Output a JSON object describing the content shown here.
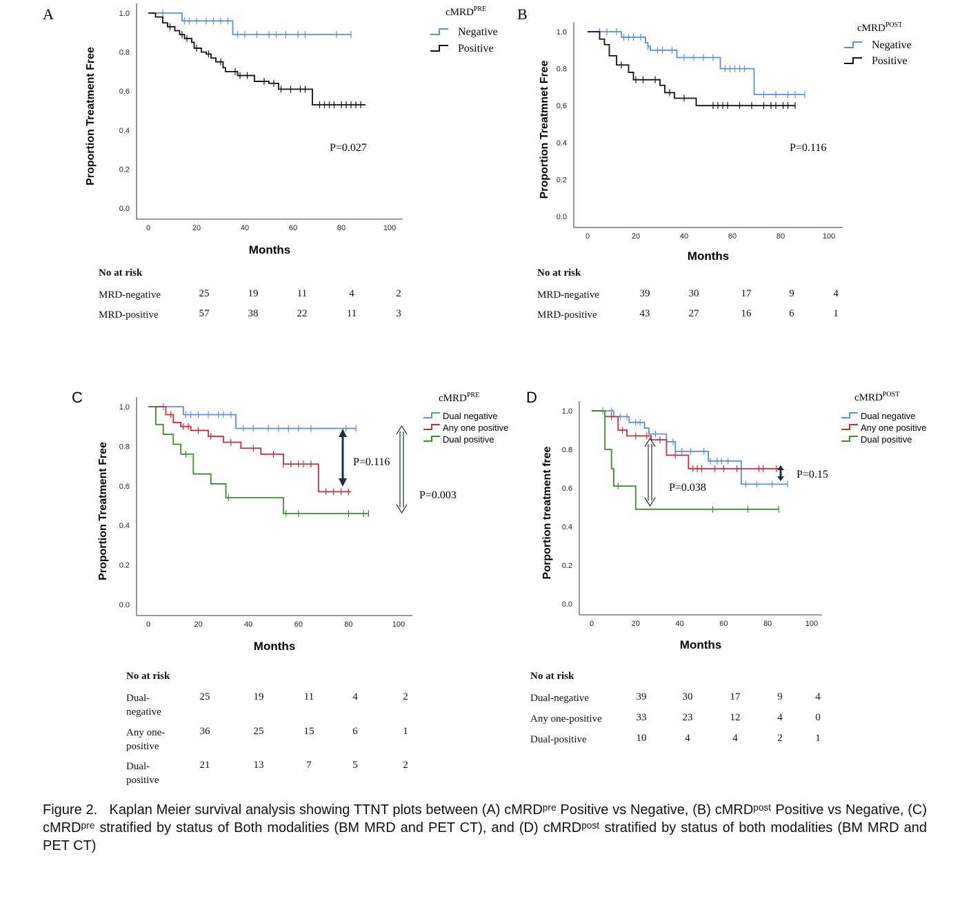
{
  "figure": {
    "caption_prefix": "Figure 2.",
    "caption_text": "Kaplan Meier survival analysis showing TTNT plots between (A) cMRDᵖʳᵉ Positive vs Negative, (B) cMRDᵖᵒˢᵗ Positive vs Negative, (C) cMRDᵖʳᵉ stratified by status of Both modalities (BM MRD and PET CT), and (D) cMRDᵖᵒˢᵗ stratified by status of both modalities (BM MRD and PET CT)"
  },
  "chart_data": [
    {
      "panel": "A",
      "type": "line",
      "step": true,
      "xlabel": "Months",
      "ylabel": "Proportion Treatment Free",
      "xlim": [
        0,
        100
      ],
      "ylim": [
        0.0,
        1.0
      ],
      "xticks": [
        "0",
        "20",
        "40",
        "60",
        "80",
        "100"
      ],
      "yticks": [
        "0.0",
        "0.2",
        "0.4",
        "0.6",
        "0.8",
        "1.0"
      ],
      "legend_title": "cMRD",
      "legend_title_sup": "PRE",
      "pvalue": "P=0.027",
      "series": [
        {
          "name": "Negative",
          "color": "#5b8fd6",
          "steps": [
            [
              0,
              1.0
            ],
            [
              14,
              0.96
            ],
            [
              35,
              0.89
            ]
          ],
          "end": 84,
          "censors": [
            6,
            15,
            17,
            20,
            24,
            27,
            30,
            33,
            37,
            40,
            45,
            50,
            53,
            57,
            62,
            65,
            78,
            84
          ]
        },
        {
          "name": "Positive",
          "color": "#111111",
          "steps": [
            [
              0,
              1.0
            ],
            [
              3,
              0.98
            ],
            [
              6,
              0.95
            ],
            [
              8,
              0.93
            ],
            [
              11,
              0.91
            ],
            [
              13,
              0.89
            ],
            [
              15,
              0.87
            ],
            [
              18,
              0.85
            ],
            [
              19,
              0.82
            ],
            [
              22,
              0.8
            ],
            [
              24,
              0.79
            ],
            [
              26,
              0.77
            ],
            [
              28,
              0.75
            ],
            [
              31,
              0.72
            ],
            [
              32,
              0.7
            ],
            [
              37,
              0.68
            ],
            [
              44,
              0.65
            ],
            [
              50,
              0.64
            ],
            [
              54,
              0.61
            ],
            [
              68,
              0.53
            ]
          ],
          "end": 90,
          "censors": [
            9,
            14,
            16,
            20,
            25,
            30,
            36,
            38,
            41,
            48,
            52,
            55,
            59,
            63,
            65,
            71,
            73,
            75,
            77,
            80,
            82,
            84,
            86,
            88
          ]
        }
      ],
      "risk_table": {
        "header": "No at risk",
        "rows": [
          {
            "label": "MRD-negative",
            "values": [
              "25",
              "19",
              "11",
              "4",
              "2"
            ]
          },
          {
            "label": "MRD-positive",
            "values": [
              "57",
              "38",
              "22",
              "11",
              "3"
            ]
          }
        ]
      }
    },
    {
      "panel": "B",
      "type": "line",
      "step": true,
      "xlabel": "Months",
      "ylabel": "Proportion Treatmnet Free",
      "xlim": [
        0,
        100
      ],
      "ylim": [
        0.0,
        1.0
      ],
      "xticks": [
        "0",
        "20",
        "40",
        "60",
        "80",
        "100"
      ],
      "yticks": [
        "0.0",
        "0.2",
        "0.4",
        "0.6",
        "0.8",
        "1.0"
      ],
      "legend_title": "cMRD",
      "legend_title_sup": "POST",
      "pvalue": "P=0.116",
      "series": [
        {
          "name": "Negative",
          "color": "#5b8fd6",
          "steps": [
            [
              0,
              1.0
            ],
            [
              14,
              0.97
            ],
            [
              24,
              0.94
            ],
            [
              25,
              0.92
            ],
            [
              26,
              0.9
            ],
            [
              37,
              0.86
            ],
            [
              55,
              0.8
            ],
            [
              69,
              0.66
            ]
          ],
          "end": 90,
          "censors": [
            5,
            8,
            12,
            15,
            17,
            19,
            22,
            25,
            29,
            31,
            35,
            40,
            44,
            48,
            52,
            57,
            59,
            61,
            63,
            65,
            73,
            78,
            83,
            86,
            90
          ]
        },
        {
          "name": "Positive",
          "color": "#111111",
          "steps": [
            [
              0,
              1.0
            ],
            [
              5,
              0.96
            ],
            [
              7,
              0.93
            ],
            [
              9,
              0.87
            ],
            [
              12,
              0.82
            ],
            [
              17,
              0.78
            ],
            [
              19,
              0.74
            ],
            [
              30,
              0.71
            ],
            [
              32,
              0.67
            ],
            [
              36,
              0.64
            ],
            [
              45,
              0.6
            ]
          ],
          "end": 86,
          "censors": [
            14,
            20,
            23,
            28,
            34,
            40,
            52,
            54,
            56,
            58,
            63,
            68,
            73,
            76,
            78,
            81,
            83,
            86
          ]
        }
      ],
      "risk_table": {
        "header": "No at risk",
        "rows": [
          {
            "label": "MRD-negative",
            "values": [
              "39",
              "30",
              "17",
              "9",
              "4"
            ]
          },
          {
            "label": "MRD-positive",
            "values": [
              "43",
              "27",
              "16",
              "6",
              "1"
            ]
          }
        ]
      }
    },
    {
      "panel": "C",
      "type": "line",
      "step": true,
      "xlabel": "Months",
      "ylabel": "Proportion Treatment Free",
      "xlim": [
        0,
        100
      ],
      "ylim": [
        0.0,
        1.0
      ],
      "xticks": [
        "0",
        "20",
        "40",
        "60",
        "80",
        "100"
      ],
      "yticks": [
        "0.0",
        "0.2",
        "0.4",
        "0.6",
        "0.8",
        "1.0"
      ],
      "legend_title": "cMRD",
      "legend_title_sup": "PRE",
      "pvalues": [
        "P=0.116",
        "P=0.003"
      ],
      "series": [
        {
          "name": "Dual negative",
          "color": "#5b8fd6",
          "steps": [
            [
              0,
              1.0
            ],
            [
              14,
              0.96
            ],
            [
              35,
              0.89
            ]
          ],
          "end": 83,
          "censors": [
            6,
            15,
            17,
            20,
            24,
            28,
            30,
            33,
            38,
            42,
            48,
            52,
            56,
            60,
            65,
            79,
            83
          ]
        },
        {
          "name": "Any one positive",
          "color": "#c92a3e",
          "steps": [
            [
              0,
              1.0
            ],
            [
              7,
              0.96
            ],
            [
              10,
              0.92
            ],
            [
              13,
              0.9
            ],
            [
              17,
              0.88
            ],
            [
              24,
              0.85
            ],
            [
              30,
              0.82
            ],
            [
              37,
              0.79
            ],
            [
              45,
              0.76
            ],
            [
              54,
              0.71
            ],
            [
              68,
              0.57
            ]
          ],
          "end": 81,
          "censors": [
            9,
            14,
            16,
            20,
            25,
            33,
            42,
            50,
            54,
            57,
            60,
            62,
            65,
            71,
            74,
            77,
            80
          ]
        },
        {
          "name": "Dual positive",
          "color": "#3e8b2f",
          "steps": [
            [
              0,
              1.0
            ],
            [
              3,
              0.91
            ],
            [
              6,
              0.86
            ],
            [
              10,
              0.81
            ],
            [
              13,
              0.76
            ],
            [
              18,
              0.66
            ],
            [
              25,
              0.61
            ],
            [
              31,
              0.54
            ],
            [
              54,
              0.46
            ]
          ],
          "end": 88,
          "censors": [
            15,
            32,
            55,
            60,
            80,
            86,
            88
          ]
        }
      ],
      "risk_table": {
        "header": "No at risk",
        "rows": [
          {
            "label": "Dual-negative",
            "values": [
              "25",
              "19",
              "11",
              "4",
              "2"
            ]
          },
          {
            "label": "Any one-positive",
            "values": [
              "36",
              "25",
              "15",
              "6",
              "1"
            ]
          },
          {
            "label": "Dual-positive",
            "values": [
              "21",
              "13",
              "7",
              "5",
              "2"
            ]
          }
        ]
      }
    },
    {
      "panel": "D",
      "type": "line",
      "step": true,
      "xlabel": "Months",
      "ylabel": "Porportion treatment free",
      "xlim": [
        0,
        100
      ],
      "ylim": [
        0.0,
        1.0
      ],
      "xticks": [
        "0",
        "20",
        "40",
        "60",
        "80",
        "100"
      ],
      "yticks": [
        "0.0",
        "0.2",
        "0.4",
        "0.6",
        "0.8",
        "1.0"
      ],
      "legend_title": "cMRD",
      "legend_title_sup": "POST",
      "pvalues": [
        "P=0.038",
        "P=0.15"
      ],
      "series": [
        {
          "name": "Dual negative",
          "color": "#5b8fd6",
          "steps": [
            [
              0,
              1.0
            ],
            [
              10,
              0.97
            ],
            [
              17,
              0.94
            ],
            [
              24,
              0.91
            ],
            [
              26,
              0.88
            ],
            [
              34,
              0.84
            ],
            [
              38,
              0.79
            ],
            [
              53,
              0.74
            ],
            [
              68,
              0.62
            ]
          ],
          "end": 89,
          "censors": [
            5,
            9,
            13,
            16,
            20,
            22,
            29,
            37,
            41,
            45,
            51,
            54,
            57,
            59,
            62,
            70,
            75,
            82,
            89
          ]
        },
        {
          "name": "Any one positive",
          "color": "#c92a3e",
          "steps": [
            [
              0,
              1.0
            ],
            [
              6,
              0.97
            ],
            [
              12,
              0.9
            ],
            [
              16,
              0.87
            ],
            [
              27,
              0.85
            ],
            [
              34,
              0.77
            ],
            [
              44,
              0.7
            ]
          ],
          "end": 85,
          "censors": [
            9,
            14,
            20,
            25,
            31,
            38,
            46,
            48,
            50,
            56,
            60,
            66,
            76,
            78,
            84
          ]
        },
        {
          "name": "Dual positive",
          "color": "#3e8b2f",
          "steps": [
            [
              0,
              1.0
            ],
            [
              6,
              0.8
            ],
            [
              9,
              0.7
            ],
            [
              10,
              0.61
            ],
            [
              20,
              0.49
            ]
          ],
          "end": 85,
          "censors": [
            12,
            55,
            71,
            85
          ]
        }
      ],
      "risk_table": {
        "header": "No at risk",
        "rows": [
          {
            "label": "Dual-negative",
            "values": [
              "39",
              "30",
              "17",
              "9",
              "4"
            ]
          },
          {
            "label": "Any one-positive",
            "values": [
              "33",
              "23",
              "12",
              "4",
              "0"
            ]
          },
          {
            "label": "Dual-positive",
            "values": [
              "10",
              "4",
              "4",
              "2",
              "1"
            ]
          }
        ]
      }
    }
  ]
}
